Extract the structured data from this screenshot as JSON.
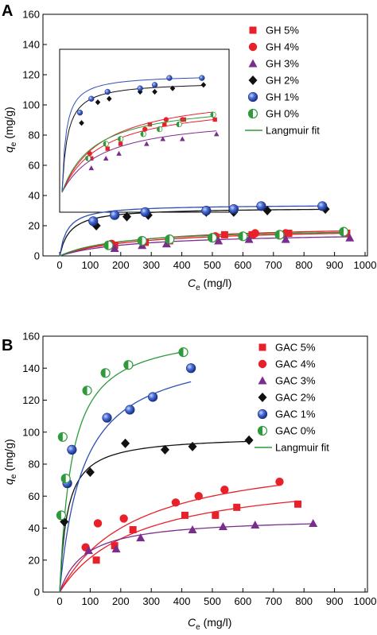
{
  "chart_data": [
    {
      "panel": "A",
      "type": "scatter",
      "xlabel": "C",
      "xlabel_sub": "e",
      "xlabel_unit": " (mg/l)",
      "ylabel": "q",
      "ylabel_sub": "e",
      "ylabel_unit": " (mg/g)",
      "xlim": [
        0,
        1000
      ],
      "ylim": [
        0,
        160
      ],
      "xticks": [
        0,
        100,
        200,
        300,
        400,
        500,
        600,
        700,
        800,
        900,
        1000
      ],
      "yticks": [
        0,
        20,
        40,
        60,
        80,
        100,
        120,
        140,
        160
      ],
      "legend_position": "top-right",
      "fit_label": "Langmuir fit",
      "series": [
        {
          "name": "GH 5%",
          "marker": "square",
          "color": "#e8202a",
          "x": [
            180,
            280,
            360,
            540,
            630,
            750,
            940
          ],
          "y": [
            7,
            9,
            10,
            14,
            14,
            15,
            15
          ],
          "fit": {
            "qmax": 19,
            "KL": 0.004
          }
        },
        {
          "name": "GH 4%",
          "marker": "circle",
          "color": "#e8202a",
          "x": [
            170,
            270,
            360,
            510,
            640,
            740,
            930
          ],
          "y": [
            8,
            10,
            11,
            13,
            15,
            15,
            16
          ],
          "fit": {
            "qmax": 21,
            "KL": 0.004
          }
        },
        {
          "name": "GH 3%",
          "marker": "triangle",
          "color": "#7b2d8e",
          "x": [
            180,
            270,
            350,
            520,
            620,
            740,
            950
          ],
          "y": [
            5,
            7,
            8,
            10,
            11,
            11,
            12
          ],
          "fit": {
            "qmax": 16,
            "KL": 0.004
          }
        },
        {
          "name": "GH 2%",
          "marker": "diamond",
          "color": "#111111",
          "x": [
            120,
            220,
            290,
            480,
            570,
            680,
            870
          ],
          "y": [
            20,
            26,
            27,
            29,
            29,
            30,
            31
          ],
          "fit": {
            "qmax": 32,
            "KL": 0.03
          }
        },
        {
          "name": "GH 1%",
          "marker": "sphere",
          "color": "#2e4fb5",
          "x": [
            110,
            180,
            280,
            480,
            570,
            660,
            860
          ],
          "y": [
            23,
            27,
            29,
            30,
            31,
            33,
            33
          ],
          "fit": {
            "qmax": 34,
            "KL": 0.04
          }
        },
        {
          "name": "GH 0%",
          "marker": "halfcircle",
          "color": "#2f9a3c",
          "x": [
            160,
            270,
            360,
            500,
            600,
            720,
            930
          ],
          "y": [
            7,
            10,
            11,
            12,
            13,
            14,
            16
          ],
          "fit": {
            "qmax": 19,
            "KL": 0.005
          }
        }
      ]
    },
    {
      "panel": "B",
      "type": "scatter",
      "xlabel": "C",
      "xlabel_sub": "e",
      "xlabel_unit": " (mg/l)",
      "ylabel": "q",
      "ylabel_sub": "e",
      "ylabel_unit": " (mg/g)",
      "xlim": [
        0,
        1000
      ],
      "ylim": [
        0,
        160
      ],
      "xticks": [
        0,
        100,
        200,
        300,
        400,
        500,
        600,
        700,
        800,
        900,
        1000
      ],
      "yticks": [
        0,
        20,
        40,
        60,
        80,
        100,
        120,
        140,
        160
      ],
      "legend_position": "top-right",
      "fit_label": "Langmuir fit",
      "series": [
        {
          "name": "GAC 5%",
          "marker": "square",
          "color": "#e8202a",
          "x": [
            120,
            180,
            240,
            410,
            510,
            580,
            780
          ],
          "y": [
            20,
            29,
            39,
            48,
            48,
            53,
            55
          ],
          "fit": {
            "qmax": 75,
            "KL": 0.004,
            "xmax": 780
          }
        },
        {
          "name": "GAC 4%",
          "marker": "circle",
          "color": "#e8202a",
          "x": [
            85,
            125,
            210,
            380,
            455,
            540,
            720
          ],
          "y": [
            28,
            43,
            46,
            56,
            60,
            64,
            69
          ],
          "fit": {
            "qmax": 90,
            "KL": 0.004,
            "xmax": 720
          }
        },
        {
          "name": "GAC 3%",
          "marker": "triangle",
          "color": "#7b2d8e",
          "x": [
            95,
            185,
            265,
            435,
            535,
            640,
            830
          ],
          "y": [
            26,
            27,
            34,
            39,
            41,
            42,
            43
          ],
          "fit": {
            "qmax": 47,
            "KL": 0.012,
            "xmax": 830
          }
        },
        {
          "name": "GAC 2%",
          "marker": "diamond",
          "color": "#111111",
          "x": [
            15,
            100,
            215,
            345,
            435,
            620
          ],
          "y": [
            44,
            75,
            93,
            89,
            91,
            95
          ],
          "fit": {
            "qmax": 98,
            "KL": 0.04,
            "xmax": 630
          }
        },
        {
          "name": "GAC 1%",
          "marker": "sphere",
          "color": "#2e4fb5",
          "x": [
            25,
            40,
            155,
            230,
            305,
            430
          ],
          "y": [
            68,
            89,
            109,
            114,
            122,
            140
          ],
          "fit": {
            "qmax": 155,
            "KL": 0.013,
            "xmax": 430
          }
        },
        {
          "name": "GAC 0%",
          "marker": "halfcircle",
          "color": "#2f9a3c",
          "x": [
            5,
            10,
            20,
            90,
            150,
            225,
            405
          ],
          "y": [
            48,
            97,
            71,
            126,
            137,
            142,
            150
          ],
          "fit": {
            "qmax": 165,
            "KL": 0.025,
            "xmax": 420
          }
        }
      ]
    }
  ]
}
